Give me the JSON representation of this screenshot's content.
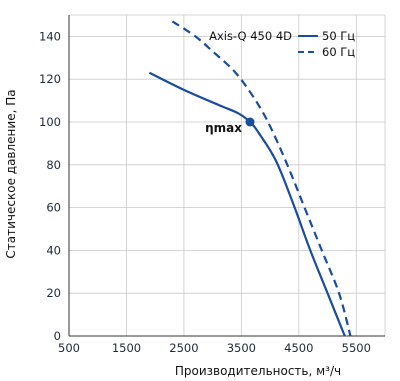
{
  "chart_data": {
    "type": "line",
    "title": "",
    "xlabel": "Производительность, м³/ч",
    "ylabel": "Статическое давление, Па",
    "xlim": [
      500,
      6000
    ],
    "ylim": [
      0,
      150
    ],
    "x_ticks": [
      500,
      1500,
      2500,
      3500,
      4500,
      5500
    ],
    "y_ticks": [
      0,
      20,
      40,
      60,
      80,
      100,
      120,
      140
    ],
    "grid": true,
    "legend": {
      "title": "Axis-Q 450 4D",
      "placement": "top-right"
    },
    "series": [
      {
        "name": "50 Гц",
        "style": "solid",
        "color": "#1a4d9c",
        "x": [
          1900,
          2500,
          3100,
          3450,
          3650,
          3800,
          4100,
          4400,
          4700,
          5000,
          5300
        ],
        "y": [
          123,
          115,
          108,
          104,
          100,
          95,
          82,
          62,
          40,
          20,
          0
        ]
      },
      {
        "name": "60 Гц",
        "style": "dashed",
        "color": "#1a4d9c",
        "x": [
          2300,
          2700,
          3000,
          3400,
          3750,
          4000,
          4300,
          4600,
          4900,
          5200,
          5400
        ],
        "y": [
          147,
          140,
          133,
          123,
          110,
          98,
          80,
          60,
          40,
          20,
          0
        ]
      }
    ],
    "annotation": {
      "label": "ηmax",
      "x": 3650,
      "y": 100
    }
  }
}
